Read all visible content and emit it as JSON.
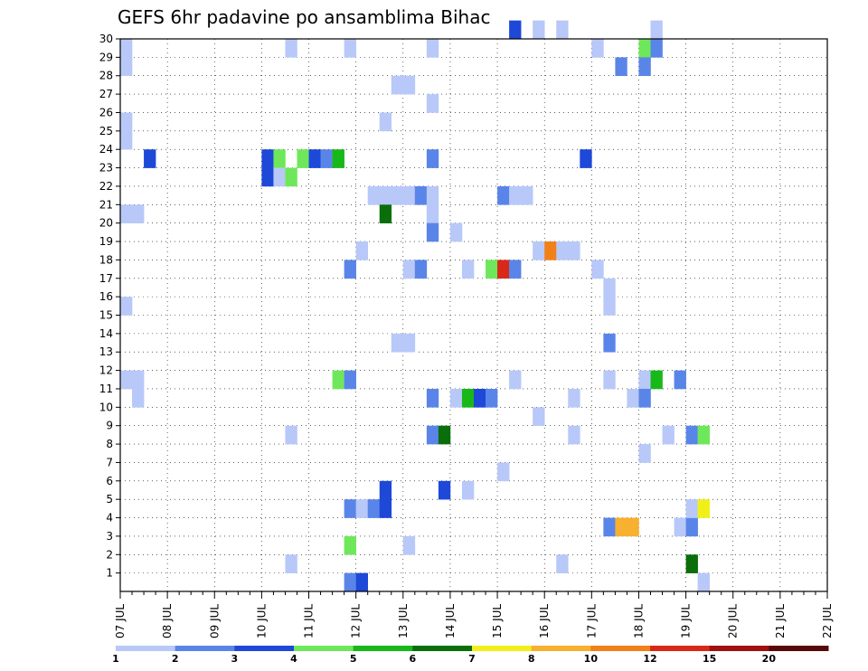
{
  "chart_data": {
    "type": "heatmap",
    "title": "GEFS 6hr padavine po ansamblima Bihac",
    "x_unit_label": "JUL",
    "x_days": [
      "07",
      "08",
      "09",
      "10",
      "11",
      "12",
      "13",
      "14",
      "15",
      "16",
      "17",
      "18",
      "19",
      "20",
      "21",
      "22"
    ],
    "x_steps_per_day": 4,
    "y_ticks": [
      1,
      2,
      3,
      4,
      5,
      6,
      7,
      8,
      9,
      10,
      11,
      12,
      13,
      14,
      15,
      16,
      17,
      18,
      19,
      20,
      21,
      22,
      23,
      24,
      25,
      26,
      27,
      28,
      29,
      30
    ],
    "ylim": [
      0,
      30
    ],
    "grid": true,
    "legend": {
      "placement": "bottom",
      "labels": [
        "1",
        "2",
        "3",
        "4",
        "5",
        "6",
        "7",
        "8",
        "10",
        "12",
        "15",
        "20"
      ],
      "colors": [
        "#b8c8f8",
        "#5a85e8",
        "#1e48d8",
        "#6ee85a",
        "#18b818",
        "#0a6e0a",
        "#f0f018",
        "#f8b030",
        "#f08018",
        "#d82818",
        "#a01010",
        "#580808"
      ]
    },
    "cells": [
      [
        0,
        29,
        1
      ],
      [
        0,
        28,
        1
      ],
      [
        0,
        25,
        1
      ],
      [
        0,
        24,
        1
      ],
      [
        0,
        20,
        1
      ],
      [
        1,
        20,
        1
      ],
      [
        0,
        15,
        1
      ],
      [
        0,
        11,
        1
      ],
      [
        1,
        11,
        1
      ],
      [
        1,
        10,
        1
      ],
      [
        2,
        23,
        3
      ],
      [
        12,
        23,
        3
      ],
      [
        12,
        22,
        3
      ],
      [
        13,
        23,
        4
      ],
      [
        13,
        22,
        1
      ],
      [
        14,
        22,
        4
      ],
      [
        14,
        29,
        1
      ],
      [
        15,
        23,
        4
      ],
      [
        16,
        23,
        3
      ],
      [
        17,
        23,
        2
      ],
      [
        18,
        23,
        5
      ],
      [
        14,
        1,
        1
      ],
      [
        14,
        8,
        1
      ],
      [
        18,
        11,
        4
      ],
      [
        19,
        11,
        2
      ],
      [
        19,
        17,
        2
      ],
      [
        19,
        29,
        1
      ],
      [
        19,
        4,
        2
      ],
      [
        19,
        2,
        4
      ],
      [
        19,
        0,
        2
      ],
      [
        20,
        0,
        3
      ],
      [
        20,
        18,
        1
      ],
      [
        20,
        4,
        1
      ],
      [
        21,
        4,
        2
      ],
      [
        21,
        21,
        1
      ],
      [
        22,
        21,
        1
      ],
      [
        22,
        5,
        3
      ],
      [
        22,
        4,
        3
      ],
      [
        22,
        25,
        1
      ],
      [
        22,
        20,
        6
      ],
      [
        23,
        27,
        1
      ],
      [
        24,
        27,
        1
      ],
      [
        23,
        21,
        1
      ],
      [
        24,
        21,
        1
      ],
      [
        23,
        13,
        1
      ],
      [
        24,
        13,
        1
      ],
      [
        24,
        17,
        1
      ],
      [
        24,
        2,
        1
      ],
      [
        25,
        21,
        2
      ],
      [
        25,
        17,
        2
      ],
      [
        26,
        26,
        1
      ],
      [
        26,
        29,
        1
      ],
      [
        26,
        23,
        2
      ],
      [
        26,
        21,
        1
      ],
      [
        26,
        20,
        1
      ],
      [
        26,
        19,
        2
      ],
      [
        26,
        10,
        2
      ],
      [
        26,
        8,
        2
      ],
      [
        27,
        8,
        6
      ],
      [
        27,
        5,
        3
      ],
      [
        28,
        19,
        1
      ],
      [
        28,
        10,
        1
      ],
      [
        29,
        17,
        1
      ],
      [
        29,
        10,
        5
      ],
      [
        29,
        5,
        1
      ],
      [
        30,
        10,
        3
      ],
      [
        31,
        10,
        2
      ],
      [
        31,
        17,
        4
      ],
      [
        32,
        17,
        10
      ],
      [
        33,
        17,
        2
      ],
      [
        32,
        21,
        2
      ],
      [
        33,
        21,
        1
      ],
      [
        34,
        21,
        1
      ],
      [
        32,
        6,
        1
      ],
      [
        33,
        30,
        3
      ],
      [
        33,
        11,
        1
      ],
      [
        35,
        30,
        1
      ],
      [
        35,
        18,
        1
      ],
      [
        35,
        9,
        1
      ],
      [
        36,
        18,
        9
      ],
      [
        37,
        18,
        1
      ],
      [
        38,
        18,
        1
      ],
      [
        37,
        30,
        1
      ],
      [
        37,
        1,
        1
      ],
      [
        38,
        10,
        1
      ],
      [
        38,
        8,
        1
      ],
      [
        39,
        23,
        3
      ],
      [
        40,
        29,
        1
      ],
      [
        40,
        17,
        1
      ],
      [
        41,
        16,
        1
      ],
      [
        41,
        15,
        1
      ],
      [
        41,
        13,
        2
      ],
      [
        41,
        11,
        1
      ],
      [
        41,
        3,
        2
      ],
      [
        42,
        28,
        2
      ],
      [
        42,
        3,
        8
      ],
      [
        43,
        3,
        8
      ],
      [
        43,
        10,
        1
      ],
      [
        44,
        29,
        4
      ],
      [
        44,
        28,
        2
      ],
      [
        44,
        11,
        1
      ],
      [
        44,
        10,
        2
      ],
      [
        44,
        7,
        1
      ],
      [
        45,
        30,
        1
      ],
      [
        45,
        29,
        2
      ],
      [
        45,
        11,
        5
      ],
      [
        46,
        8,
        1
      ],
      [
        47,
        11,
        2
      ],
      [
        47,
        3,
        1
      ],
      [
        48,
        3,
        2
      ],
      [
        48,
        4,
        1
      ],
      [
        48,
        1,
        6
      ],
      [
        48,
        8,
        2
      ],
      [
        49,
        8,
        4
      ],
      [
        49,
        4,
        7
      ],
      [
        49,
        0,
        1
      ]
    ]
  }
}
